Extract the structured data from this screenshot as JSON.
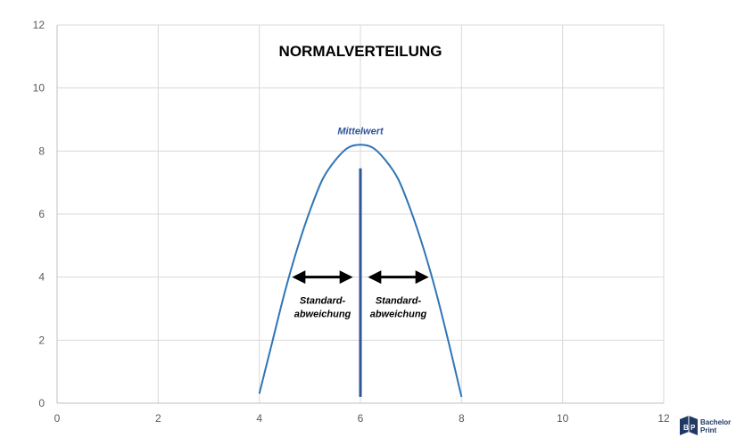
{
  "chart_data": {
    "type": "line",
    "title": "NORMALVERTEILUNG",
    "xlabel": "",
    "ylabel": "",
    "xlim": [
      0,
      12
    ],
    "ylim": [
      0,
      12
    ],
    "xticks": [
      0,
      2,
      4,
      6,
      8,
      10,
      12
    ],
    "yticks": [
      0,
      2,
      4,
      6,
      8,
      10,
      12
    ],
    "grid": true,
    "series": [
      {
        "x": [
          4.0,
          4.25,
          4.5,
          4.75,
          5.0,
          5.25,
          5.5,
          5.75,
          6.0,
          6.25,
          6.5,
          6.75,
          7.0,
          7.25,
          7.5,
          7.75,
          8.0
        ],
        "y": [
          0.3,
          1.9,
          3.5,
          4.9,
          6.1,
          7.1,
          7.7,
          8.1,
          8.2,
          8.1,
          7.7,
          7.1,
          6.1,
          4.9,
          3.5,
          1.9,
          0.2
        ]
      }
    ],
    "mean_line": {
      "x": 6,
      "y_from": 0.2,
      "y_to": 7.45
    },
    "annotations": {
      "mean_label": "Mittelwert",
      "std_left_line1": "Standard-",
      "std_left_line2": "abweichung",
      "std_right_line1": "Standard-",
      "std_right_line2": "abweichung"
    },
    "arrows": [
      {
        "from": 4.7,
        "to": 5.8,
        "y": 4
      },
      {
        "from": 6.2,
        "to": 7.3,
        "y": 4
      }
    ],
    "colors": {
      "curve": "#2e75b6",
      "mean_line": "#2f5597",
      "mean_label": "#2f5597",
      "arrow": "#000000",
      "grid": "#d9d9d9",
      "axis": "#bfbfbf"
    }
  },
  "logo": {
    "line1": "Bachelor",
    "line2": "Print",
    "color": "#1f3864"
  }
}
